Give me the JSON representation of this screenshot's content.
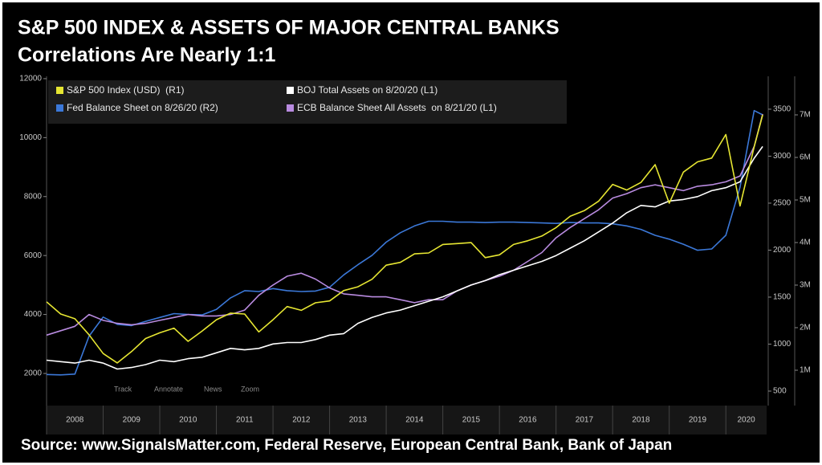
{
  "chart_data": {
    "type": "line",
    "title": "S&P 500 INDEX & ASSETS OF MAJOR CENTRAL BANKS",
    "subtitle": "Correlations Are Nearly 1:1",
    "source": "Source: www.SignalsMatter.com, Federal Reserve, European Central Bank, Bank of Japan",
    "toolbar": [
      "Track",
      "Annotate",
      "News",
      "Zoom"
    ],
    "x": [
      2008,
      2008.25,
      2008.5,
      2008.75,
      2009,
      2009.25,
      2009.5,
      2009.75,
      2010,
      2010.25,
      2010.5,
      2010.75,
      2011,
      2011.25,
      2011.5,
      2011.75,
      2012,
      2012.25,
      2012.5,
      2012.75,
      2013,
      2013.25,
      2013.5,
      2013.75,
      2014,
      2014.25,
      2014.5,
      2014.75,
      2015,
      2015.25,
      2015.5,
      2015.75,
      2016,
      2016.25,
      2016.5,
      2016.75,
      2017,
      2017.25,
      2017.5,
      2017.75,
      2018,
      2018.25,
      2018.5,
      2018.75,
      2019,
      2019.25,
      2019.5,
      2019.75,
      2020,
      2020.25,
      2020.5,
      2020.65
    ],
    "series": [
      {
        "name": "S&P 500 Index (USD)  (R1)",
        "color": "#e6e632",
        "axis": "y2",
        "values": [
          1450,
          1320,
          1270,
          1100,
          900,
          800,
          920,
          1060,
          1120,
          1170,
          1030,
          1140,
          1260,
          1330,
          1320,
          1130,
          1260,
          1400,
          1360,
          1440,
          1460,
          1570,
          1610,
          1690,
          1840,
          1870,
          1960,
          1970,
          2060,
          2070,
          2080,
          1920,
          1950,
          2060,
          2100,
          2150,
          2240,
          2360,
          2420,
          2520,
          2700,
          2640,
          2720,
          2910,
          2500,
          2830,
          2940,
          2980,
          3230,
          2470,
          3100,
          3440
        ]
      },
      {
        "name": "BOJ Total Assets on 8/20/20 (L1)",
        "color": "#ffffff",
        "values": [
          2450,
          2400,
          2350,
          2450,
          2350,
          2150,
          2200,
          2300,
          2450,
          2400,
          2500,
          2550,
          2700,
          2850,
          2800,
          2850,
          3000,
          3050,
          3050,
          3150,
          3300,
          3350,
          3700,
          3900,
          4050,
          4150,
          4300,
          4450,
          4600,
          4800,
          5000,
          5150,
          5350,
          5500,
          5650,
          5800,
          6000,
          6250,
          6500,
          6800,
          7100,
          7450,
          7700,
          7650,
          7850,
          7900,
          8000,
          8200,
          8300,
          8500,
          9300,
          9700
        ]
      },
      {
        "name": "Fed Balance Sheet on 8/26/20 (R2)",
        "color": "#3b78d8",
        "axis": "y3",
        "values": [
          900000,
          890000,
          910000,
          1800000,
          2250000,
          2080000,
          2050000,
          2150000,
          2240000,
          2330000,
          2310000,
          2300000,
          2430000,
          2700000,
          2870000,
          2850000,
          2920000,
          2870000,
          2850000,
          2860000,
          2950000,
          3240000,
          3480000,
          3700000,
          4010000,
          4230000,
          4390000,
          4500000,
          4500000,
          4480000,
          4480000,
          4470000,
          4480000,
          4480000,
          4470000,
          4460000,
          4450000,
          4470000,
          4460000,
          4460000,
          4440000,
          4390000,
          4310000,
          4170000,
          4080000,
          3960000,
          3820000,
          3850000,
          4170000,
          5300000,
          7100000,
          7000000
        ]
      },
      {
        "name": "ECB Balance Sheet All Assets  on 8/21/20 (L1)",
        "color": "#b98be0",
        "values": [
          3300,
          3450,
          3600,
          4000,
          3800,
          3700,
          3650,
          3700,
          3800,
          3900,
          4000,
          3950,
          3950,
          4000,
          4150,
          4650,
          5000,
          5300,
          5400,
          5200,
          4900,
          4700,
          4650,
          4600,
          4600,
          4500,
          4400,
          4500,
          4500,
          4800,
          5000,
          5150,
          5300,
          5500,
          5800,
          6100,
          6600,
          6950,
          7250,
          7550,
          7950,
          8100,
          8300,
          8400,
          8300,
          8200,
          8350,
          8400,
          8500,
          8700,
          9700,
          10800
        ]
      }
    ],
    "xlim": [
      2008,
      2020.72
    ],
    "xticks": [
      2008,
      2009,
      2010,
      2011,
      2012,
      2013,
      2014,
      2015,
      2016,
      2017,
      2018,
      2019,
      2020
    ],
    "ylim": [
      910,
      12080
    ],
    "yticks": [
      2000,
      4000,
      6000,
      8000,
      10000,
      12000
    ],
    "y2lim": [
      346,
      3850
    ],
    "y2ticks": [
      500,
      1000,
      1500,
      2000,
      2500,
      3000,
      3500
    ],
    "y3lim": [
      170000,
      7906000
    ],
    "y3ticks": [
      {
        "value": 1000000,
        "label": "1M"
      },
      {
        "value": 2000000,
        "label": "2M"
      },
      {
        "value": 3000000,
        "label": "3M"
      },
      {
        "value": 4000000,
        "label": "4M"
      },
      {
        "value": 5000000,
        "label": "5M"
      },
      {
        "value": 6000000,
        "label": "6M"
      },
      {
        "value": 7000000,
        "label": "7M"
      }
    ],
    "grid": false
  }
}
